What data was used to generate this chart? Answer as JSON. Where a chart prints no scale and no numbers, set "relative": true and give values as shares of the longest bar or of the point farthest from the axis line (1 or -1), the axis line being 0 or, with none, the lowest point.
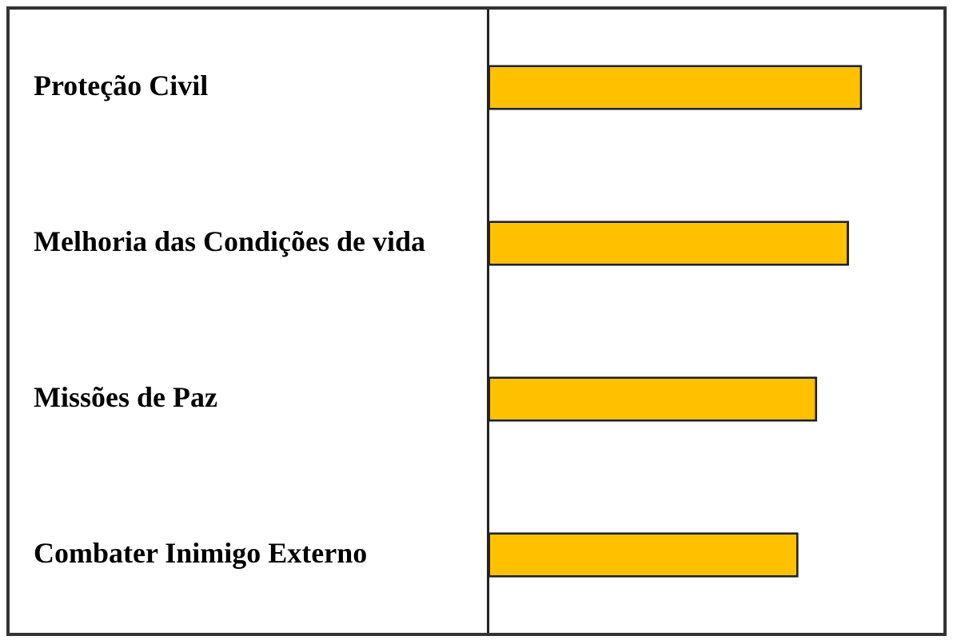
{
  "chart_data": {
    "type": "bar",
    "orientation": "horizontal",
    "relative": true,
    "categories": [
      "Proteção Civil",
      "Melhoria das Condições de vida",
      "Missões de Paz",
      "Combater Inimigo Externo"
    ],
    "values": [
      1,
      0.965,
      0.88,
      0.83
    ],
    "color": "#ffc000"
  }
}
